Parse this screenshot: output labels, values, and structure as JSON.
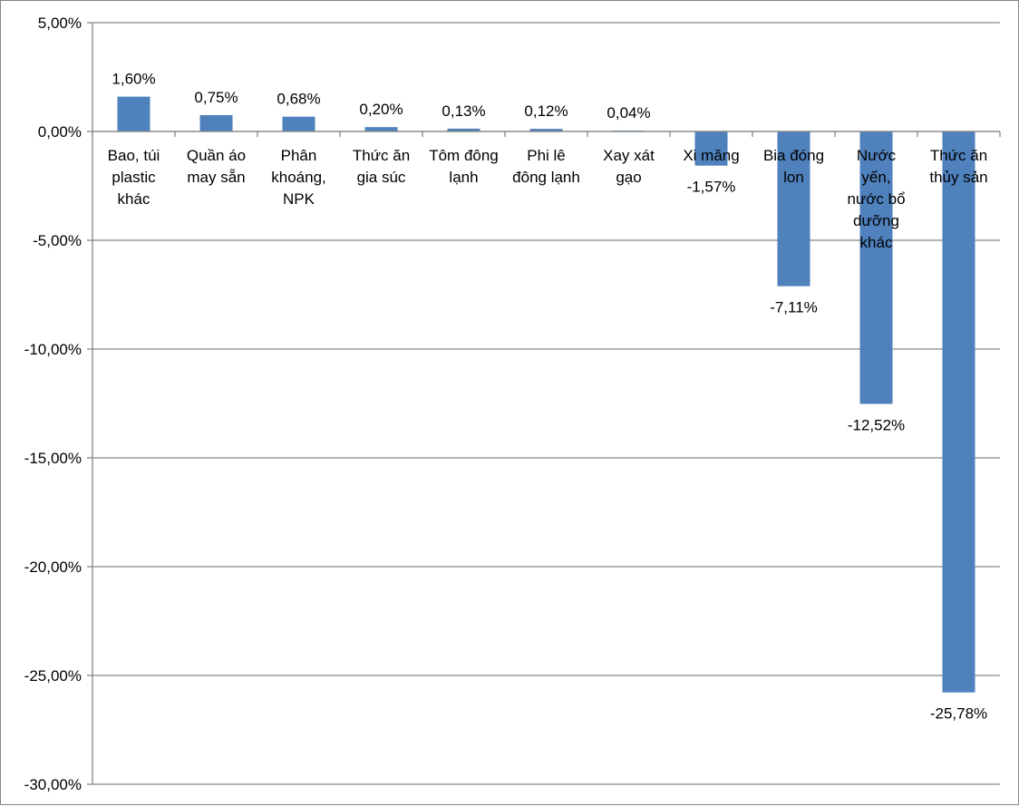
{
  "chart_data": {
    "type": "bar",
    "title": "",
    "xlabel": "",
    "ylabel": "",
    "ylim": [
      -30,
      5
    ],
    "y_ticks": [
      5,
      0,
      -5,
      -10,
      -15,
      -20,
      -25,
      -30
    ],
    "y_tick_labels": [
      "5,00%",
      "0,00%",
      "-5,00%",
      "-10,00%",
      "-15,00%",
      "-20,00%",
      "-25,00%",
      "-30,00%"
    ],
    "grid": true,
    "legend": "none",
    "bar_color": "#4F81BD",
    "categories": [
      {
        "label_lines": [
          "Bao, túi",
          "plastic",
          "khác"
        ]
      },
      {
        "label_lines": [
          "Quần áo",
          "may sẵn"
        ]
      },
      {
        "label_lines": [
          "Phân",
          "khoáng,",
          "NPK"
        ]
      },
      {
        "label_lines": [
          "Thức ăn",
          "gia súc"
        ]
      },
      {
        "label_lines": [
          "Tôm đông",
          "lạnh"
        ]
      },
      {
        "label_lines": [
          "Phi lê",
          "đông lạnh"
        ]
      },
      {
        "label_lines": [
          "Xay xát",
          "gạo"
        ]
      },
      {
        "label_lines": [
          "Xi măng"
        ]
      },
      {
        "label_lines": [
          "Bia đóng",
          "lon"
        ]
      },
      {
        "label_lines": [
          "Nước",
          "yến,",
          "nước bổ",
          "dưỡng",
          "khác"
        ]
      },
      {
        "label_lines": [
          "Thức ăn",
          "thủy sản"
        ]
      }
    ],
    "values": [
      1.6,
      0.75,
      0.68,
      0.2,
      0.13,
      0.12,
      0.04,
      -1.57,
      -7.11,
      -12.52,
      -25.78
    ],
    "data_labels": [
      "1,60%",
      "0,75%",
      "0,68%",
      "0,20%",
      "0,13%",
      "0,12%",
      "0,04%",
      "-1,57%",
      "-7,11%",
      "-12,52%",
      "-25,78%"
    ]
  }
}
